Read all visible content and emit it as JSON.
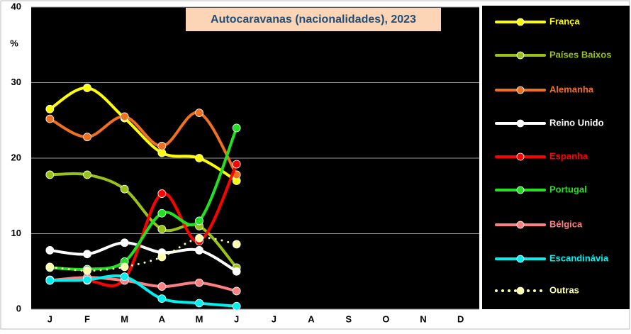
{
  "chart_data": {
    "type": "line",
    "title": "Autocaravanas (nacionalidades), 2023",
    "y_label": "%",
    "categories": [
      "J",
      "F",
      "M",
      "A",
      "M",
      "J",
      "J",
      "A",
      "S",
      "O",
      "N",
      "D"
    ],
    "ylim": [
      0,
      40
    ],
    "yticks": [
      0,
      10,
      20,
      30,
      40
    ],
    "grid": true,
    "legend": "right",
    "smooth": true,
    "series": [
      {
        "name": "França",
        "color": "#ffff00",
        "values": [
          26.5,
          29.3,
          25.3,
          20.7,
          20.0,
          17.0,
          null,
          null,
          null,
          null,
          null,
          null
        ]
      },
      {
        "name": "Países Baixos",
        "color": "#99c31a",
        "values": [
          17.8,
          17.8,
          15.9,
          10.6,
          11.0,
          5.5,
          null,
          null,
          null,
          null,
          null,
          null
        ]
      },
      {
        "name": "Alemanha",
        "color": "#f07020",
        "values": [
          25.2,
          22.8,
          25.5,
          21.6,
          26.0,
          17.8,
          null,
          null,
          null,
          null,
          null,
          null
        ]
      },
      {
        "name": "Reino Unido",
        "color": "#ffffff",
        "values": [
          7.8,
          7.3,
          8.8,
          7.5,
          7.8,
          5.0,
          null,
          null,
          null,
          null,
          null,
          null
        ]
      },
      {
        "name": "Espanha",
        "color": "#ff0000",
        "values": [
          3.9,
          3.8,
          4.0,
          15.3,
          9.0,
          19.2,
          null,
          null,
          null,
          null,
          null,
          null
        ]
      },
      {
        "name": "Portugal",
        "color": "#22e022",
        "values": [
          5.5,
          5.3,
          6.3,
          12.7,
          11.7,
          24.0,
          null,
          null,
          null,
          null,
          null,
          null
        ]
      },
      {
        "name": "Bélgica",
        "color": "#ff8080",
        "values": [
          3.8,
          4.2,
          3.8,
          3.0,
          3.5,
          2.4,
          null,
          null,
          null,
          null,
          null,
          null
        ]
      },
      {
        "name": "Escandinávia",
        "color": "#00f0f0",
        "values": [
          3.8,
          3.9,
          4.3,
          1.4,
          0.8,
          0.4,
          null,
          null,
          null,
          null,
          null,
          null
        ]
      },
      {
        "name": "Outras",
        "color": "#ffffaa",
        "dotted": true,
        "values": [
          5.6,
          5.1,
          5.6,
          6.9,
          9.4,
          8.6,
          null,
          null,
          null,
          null,
          null,
          null
        ]
      }
    ]
  }
}
